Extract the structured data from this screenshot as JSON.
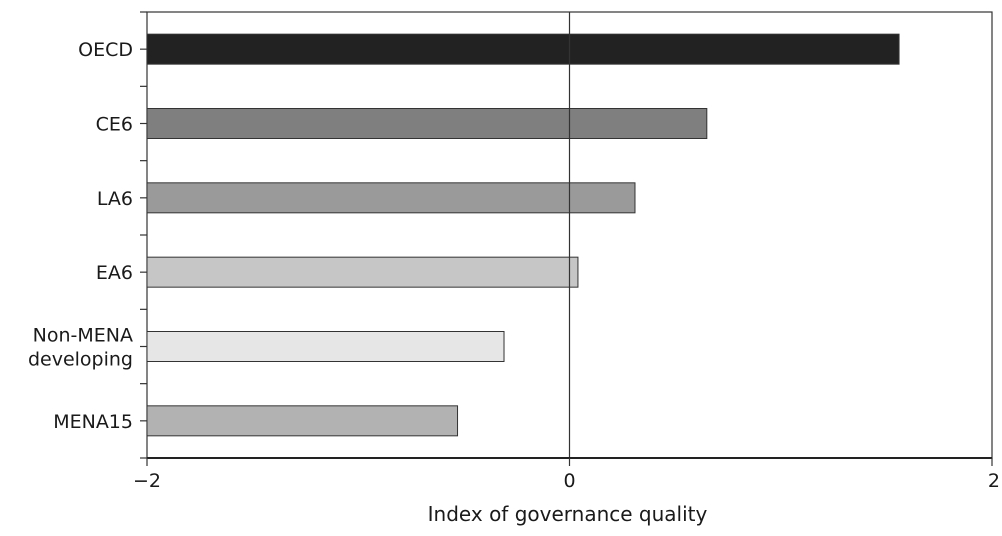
{
  "chart_data": {
    "type": "bar",
    "orientation": "horizontal",
    "categories": [
      [
        "OECD"
      ],
      [
        "CE6"
      ],
      [
        "LA6"
      ],
      [
        "EA6"
      ],
      [
        "Non-MENA",
        "developing"
      ],
      [
        "MENA15"
      ]
    ],
    "values": [
      1.56,
      0.65,
      0.31,
      0.04,
      -0.31,
      -0.53
    ],
    "bar_colors": [
      "#222222",
      "#7f7f7f",
      "#9a9a9a",
      "#c6c6c6",
      "#e6e6e6",
      "#b2b2b2"
    ],
    "xlabel": "Index of governance quality",
    "xlim": [
      -2,
      2
    ],
    "xticks": [
      -2,
      0,
      2
    ],
    "xtick_labels": [
      "−2",
      "0",
      "2"
    ],
    "grid": false,
    "legend": "none"
  }
}
